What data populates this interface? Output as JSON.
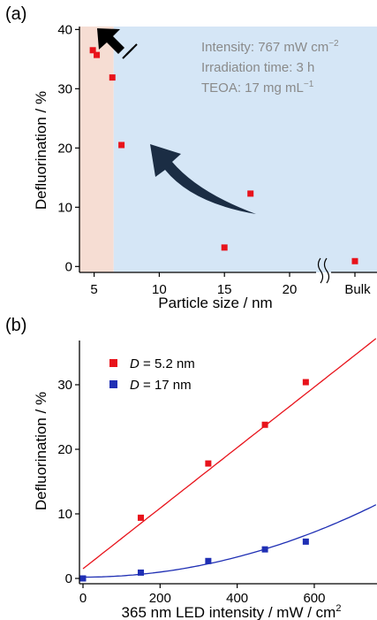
{
  "chart_data": [
    {
      "panel_label": "(a)",
      "type": "scatter",
      "xlabel": "Particle size / nm",
      "ylabel": "Defluorination / %",
      "xlim": [
        3.8,
        24
      ],
      "ylim": [
        -1,
        40.5
      ],
      "x_ticks": [
        5,
        10,
        15,
        20
      ],
      "y_ticks": [
        0,
        10,
        20,
        30,
        40
      ],
      "break_tick_label": "Bulk",
      "annotations": [
        "Intensity: 767 mW cm",
        "Irradiation time: 3 h",
        "TEOA: 17 mg mL"
      ],
      "annotation_superscripts": [
        "−2",
        "−1"
      ],
      "shaded_regions": [
        {
          "from": 3.8,
          "to": 6.5,
          "color": "#f6ddd3"
        },
        {
          "from": 6.5,
          "to": 24,
          "color": "#d5e6f6"
        }
      ],
      "points": [
        {
          "x": 4.9,
          "y": 36.5
        },
        {
          "x": 5.2,
          "y": 35.7
        },
        {
          "x": 6.4,
          "y": 31.9
        },
        {
          "x": 7.1,
          "y": 20.5
        },
        {
          "x": 15.0,
          "y": 3.2
        },
        {
          "x": 17.0,
          "y": 12.3
        }
      ],
      "bulk_point": {
        "label": "Bulk",
        "y": 0.9
      },
      "marker_color": "#e8131b"
    },
    {
      "panel_label": "(b)",
      "type": "scatter",
      "xlabel": "365 nm LED intensity / mW / cm",
      "xlabel_superscript": "2",
      "ylabel": "Defluorination / %",
      "xlim": [
        -10,
        760
      ],
      "ylim": [
        -1,
        39
      ],
      "x_ticks": [
        0,
        200,
        400,
        600
      ],
      "y_ticks": [
        0,
        10,
        20,
        30
      ],
      "series": [
        {
          "legend_prefix": "D",
          "legend_suffix": " = 5.2 nm",
          "color": "#e8131b",
          "x": [
            0,
            150,
            325,
            472,
            578
          ],
          "y": [
            0,
            9.4,
            17.8,
            23.8,
            30.4
          ],
          "fit": {
            "kind": "linear",
            "intercept": 1.5,
            "slope": 0.0469
          }
        },
        {
          "legend_prefix": "D",
          "legend_suffix": " = 17 nm",
          "color": "#1f2fb4",
          "x": [
            0,
            150,
            325,
            472,
            578
          ],
          "y": [
            0,
            0.9,
            2.7,
            4.5,
            5.7
          ],
          "fit": {
            "kind": "quadratic",
            "a": 0.2,
            "b": 8e-05,
            "c": 1.93e-05
          }
        }
      ]
    }
  ]
}
